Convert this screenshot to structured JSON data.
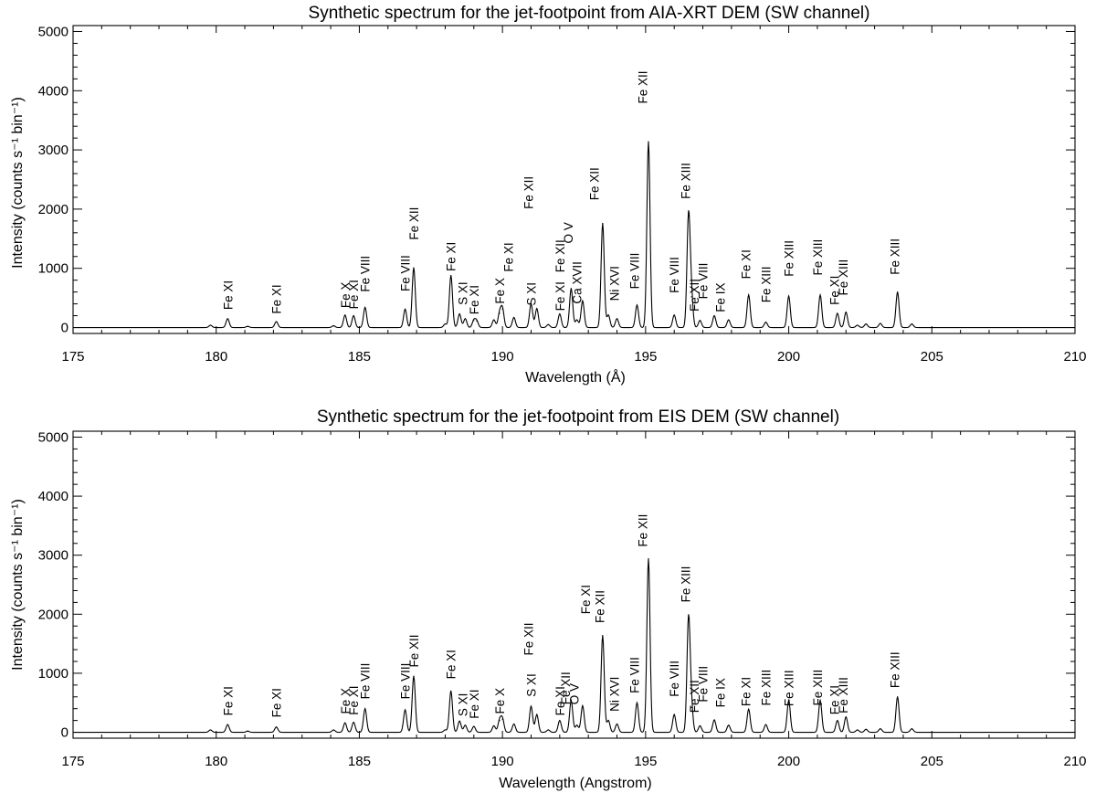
{
  "chart_data": [
    {
      "type": "line",
      "title": "Synthetic spectrum for the jet-footpoint from AIA-XRT DEM (SW channel)",
      "xlabel": "Wavelength (Å)",
      "ylabel": "Intensity (counts s⁻¹ bin⁻¹)",
      "xlim": [
        175,
        210
      ],
      "ylim": [
        -100,
        5100
      ],
      "xticks": [
        "175",
        "180",
        "185",
        "190",
        "195",
        "200",
        "205",
        "210"
      ],
      "yticks": [
        "0",
        "1000",
        "2000",
        "3000",
        "4000",
        "5000"
      ],
      "grid": false,
      "lines": [
        {
          "x": 179.8,
          "y": 40
        },
        {
          "x": 180.4,
          "y": 150
        },
        {
          "x": 181.1,
          "y": 20
        },
        {
          "x": 182.1,
          "y": 100
        },
        {
          "x": 184.1,
          "y": 30
        },
        {
          "x": 184.5,
          "y": 210
        },
        {
          "x": 184.8,
          "y": 200
        },
        {
          "x": 185.2,
          "y": 340
        },
        {
          "x": 186.6,
          "y": 310
        },
        {
          "x": 186.9,
          "y": 1010
        },
        {
          "x": 188.0,
          "y": 60
        },
        {
          "x": 188.2,
          "y": 880
        },
        {
          "x": 188.5,
          "y": 230
        },
        {
          "x": 188.7,
          "y": 150
        },
        {
          "x": 189.0,
          "y": 120
        },
        {
          "x": 189.1,
          "y": 110
        },
        {
          "x": 189.7,
          "y": 130
        },
        {
          "x": 189.9,
          "y": 240
        },
        {
          "x": 190.0,
          "y": 310
        },
        {
          "x": 190.4,
          "y": 170
        },
        {
          "x": 191.0,
          "y": 400
        },
        {
          "x": 191.2,
          "y": 320
        },
        {
          "x": 191.6,
          "y": 50
        },
        {
          "x": 192.0,
          "y": 230
        },
        {
          "x": 192.4,
          "y": 660
        },
        {
          "x": 192.6,
          "y": 130
        },
        {
          "x": 192.8,
          "y": 450
        },
        {
          "x": 193.5,
          "y": 1760
        },
        {
          "x": 193.7,
          "y": 210
        },
        {
          "x": 194.0,
          "y": 150
        },
        {
          "x": 194.7,
          "y": 380
        },
        {
          "x": 195.1,
          "y": 3140
        },
        {
          "x": 196.0,
          "y": 210
        },
        {
          "x": 196.5,
          "y": 1880
        },
        {
          "x": 196.6,
          "y": 520
        },
        {
          "x": 196.9,
          "y": 120
        },
        {
          "x": 197.4,
          "y": 200
        },
        {
          "x": 197.9,
          "y": 130
        },
        {
          "x": 198.6,
          "y": 550
        },
        {
          "x": 199.2,
          "y": 90
        },
        {
          "x": 200.0,
          "y": 530
        },
        {
          "x": 201.1,
          "y": 550
        },
        {
          "x": 201.7,
          "y": 240
        },
        {
          "x": 202.0,
          "y": 260
        },
        {
          "x": 202.4,
          "y": 40
        },
        {
          "x": 202.7,
          "y": 60
        },
        {
          "x": 203.2,
          "y": 70
        },
        {
          "x": 203.8,
          "y": 600
        },
        {
          "x": 204.3,
          "y": 60
        }
      ],
      "annotations": [
        {
          "text": "Fe XI",
          "x": 180.4,
          "y": 300,
          "rotation": 90
        },
        {
          "text": "Fe XI",
          "x": 182.1,
          "y": 230,
          "rotation": 90
        },
        {
          "text": "Fe X",
          "x": 184.5,
          "y": 330,
          "rotation": 90
        },
        {
          "text": "Fe XI",
          "x": 184.8,
          "y": 310,
          "rotation": 90
        },
        {
          "text": "Fe VIII",
          "x": 185.2,
          "y": 600,
          "rotation": 90
        },
        {
          "text": "Fe VIII",
          "x": 186.6,
          "y": 610,
          "rotation": 90
        },
        {
          "text": "Fe XII",
          "x": 186.9,
          "y": 1480,
          "rotation": 90
        },
        {
          "text": "Fe XI",
          "x": 188.2,
          "y": 950,
          "rotation": 90
        },
        {
          "text": "S XI",
          "x": 188.6,
          "y": 380,
          "rotation": 90
        },
        {
          "text": "Fe XI",
          "x": 189.0,
          "y": 220,
          "rotation": 90
        },
        {
          "text": "Fe X",
          "x": 189.9,
          "y": 400,
          "rotation": 90
        },
        {
          "text": "Fe XI",
          "x": 190.2,
          "y": 940,
          "rotation": 90
        },
        {
          "text": "Fe XII",
          "x": 190.9,
          "y": 2000,
          "rotation": 90
        },
        {
          "text": "S XI",
          "x": 191.0,
          "y": 370,
          "rotation": 90
        },
        {
          "text": "Fe XI",
          "x": 192.0,
          "y": 280,
          "rotation": 90
        },
        {
          "text": "Fe XII",
          "x": 192.0,
          "y": 930,
          "rotation": 90
        },
        {
          "text": "O V",
          "x": 192.3,
          "y": 1420,
          "rotation": 90
        },
        {
          "text": "Ca XVII",
          "x": 192.6,
          "y": 400,
          "rotation": 90
        },
        {
          "text": "Fe XII",
          "x": 193.2,
          "y": 2150,
          "rotation": 90
        },
        {
          "text": "Ni XVI",
          "x": 193.9,
          "y": 450,
          "rotation": 90
        },
        {
          "text": "Fe VIII",
          "x": 194.6,
          "y": 650,
          "rotation": 90
        },
        {
          "text": "Fe XII",
          "x": 194.9,
          "y": 3780,
          "rotation": 90
        },
        {
          "text": "Fe VIII",
          "x": 196.0,
          "y": 580,
          "rotation": 90
        },
        {
          "text": "Fe XIII",
          "x": 196.4,
          "y": 2170,
          "rotation": 90
        },
        {
          "text": "Fe XII",
          "x": 196.7,
          "y": 270,
          "rotation": 90
        },
        {
          "text": "Fe VIII",
          "x": 197.0,
          "y": 480,
          "rotation": 90
        },
        {
          "text": "Fe IX",
          "x": 197.6,
          "y": 260,
          "rotation": 90
        },
        {
          "text": "Fe XI",
          "x": 198.5,
          "y": 820,
          "rotation": 90
        },
        {
          "text": "Fe XIII",
          "x": 199.2,
          "y": 420,
          "rotation": 90
        },
        {
          "text": "Fe XIII",
          "x": 200.0,
          "y": 860,
          "rotation": 90
        },
        {
          "text": "Fe XIII",
          "x": 201.0,
          "y": 880,
          "rotation": 90
        },
        {
          "text": "Fe XI",
          "x": 201.6,
          "y": 380,
          "rotation": 90
        },
        {
          "text": "Fe XIII",
          "x": 201.9,
          "y": 540,
          "rotation": 90
        },
        {
          "text": "Fe XIII",
          "x": 203.7,
          "y": 890,
          "rotation": 90
        }
      ]
    },
    {
      "type": "line",
      "title": "Synthetic spectrum for the jet-footpoint from EIS DEM (SW channel)",
      "xlabel": "Wavelength (Angstrom)",
      "ylabel": "Intensity (counts s⁻¹ bin⁻¹)",
      "xlim": [
        175,
        210
      ],
      "ylim": [
        -100,
        5100
      ],
      "xticks": [
        "175",
        "180",
        "185",
        "190",
        "195",
        "200",
        "205",
        "210"
      ],
      "yticks": [
        "0",
        "1000",
        "2000",
        "3000",
        "4000",
        "5000"
      ],
      "grid": false,
      "lines": [
        {
          "x": 179.8,
          "y": 40
        },
        {
          "x": 180.4,
          "y": 130
        },
        {
          "x": 181.1,
          "y": 20
        },
        {
          "x": 182.1,
          "y": 90
        },
        {
          "x": 184.1,
          "y": 40
        },
        {
          "x": 184.5,
          "y": 160
        },
        {
          "x": 184.8,
          "y": 170
        },
        {
          "x": 185.2,
          "y": 400
        },
        {
          "x": 186.6,
          "y": 380
        },
        {
          "x": 186.9,
          "y": 950
        },
        {
          "x": 188.0,
          "y": 40
        },
        {
          "x": 188.2,
          "y": 700
        },
        {
          "x": 188.5,
          "y": 190
        },
        {
          "x": 188.7,
          "y": 120
        },
        {
          "x": 189.0,
          "y": 100
        },
        {
          "x": 189.7,
          "y": 110
        },
        {
          "x": 189.9,
          "y": 200
        },
        {
          "x": 190.0,
          "y": 220
        },
        {
          "x": 190.4,
          "y": 140
        },
        {
          "x": 191.0,
          "y": 440
        },
        {
          "x": 191.2,
          "y": 300
        },
        {
          "x": 191.6,
          "y": 40
        },
        {
          "x": 192.0,
          "y": 200
        },
        {
          "x": 192.4,
          "y": 540
        },
        {
          "x": 192.6,
          "y": 120
        },
        {
          "x": 192.8,
          "y": 450
        },
        {
          "x": 193.5,
          "y": 1640
        },
        {
          "x": 193.7,
          "y": 200
        },
        {
          "x": 194.0,
          "y": 140
        },
        {
          "x": 194.7,
          "y": 500
        },
        {
          "x": 195.1,
          "y": 2940
        },
        {
          "x": 196.0,
          "y": 300
        },
        {
          "x": 196.5,
          "y": 1920
        },
        {
          "x": 196.6,
          "y": 420
        },
        {
          "x": 196.9,
          "y": 110
        },
        {
          "x": 197.4,
          "y": 210
        },
        {
          "x": 197.9,
          "y": 120
        },
        {
          "x": 198.6,
          "y": 390
        },
        {
          "x": 199.2,
          "y": 130
        },
        {
          "x": 200.0,
          "y": 540
        },
        {
          "x": 201.1,
          "y": 540
        },
        {
          "x": 201.7,
          "y": 200
        },
        {
          "x": 202.0,
          "y": 260
        },
        {
          "x": 202.4,
          "y": 40
        },
        {
          "x": 202.7,
          "y": 50
        },
        {
          "x": 203.2,
          "y": 60
        },
        {
          "x": 203.8,
          "y": 600
        },
        {
          "x": 204.3,
          "y": 60
        }
      ],
      "annotations": [
        {
          "text": "Fe XI",
          "x": 180.4,
          "y": 280,
          "rotation": 90
        },
        {
          "text": "Fe XI",
          "x": 182.1,
          "y": 250,
          "rotation": 90
        },
        {
          "text": "Fe X",
          "x": 184.5,
          "y": 310,
          "rotation": 90
        },
        {
          "text": "Fe XI",
          "x": 184.8,
          "y": 290,
          "rotation": 90
        },
        {
          "text": "Fe VIII",
          "x": 185.2,
          "y": 560,
          "rotation": 90
        },
        {
          "text": "Fe VIII",
          "x": 186.6,
          "y": 560,
          "rotation": 90
        },
        {
          "text": "Fe XII",
          "x": 186.9,
          "y": 1100,
          "rotation": 90
        },
        {
          "text": "Fe XI",
          "x": 188.2,
          "y": 900,
          "rotation": 90
        },
        {
          "text": "S XI",
          "x": 188.6,
          "y": 270,
          "rotation": 90
        },
        {
          "text": "Fe XI",
          "x": 189.0,
          "y": 230,
          "rotation": 90
        },
        {
          "text": "Fe X",
          "x": 189.9,
          "y": 310,
          "rotation": 90
        },
        {
          "text": "Fe XII",
          "x": 190.9,
          "y": 1300,
          "rotation": 90
        },
        {
          "text": "S XI",
          "x": 191.0,
          "y": 600,
          "rotation": 90
        },
        {
          "text": "Fe XI",
          "x": 192.0,
          "y": 280,
          "rotation": 90
        },
        {
          "text": "Fe XII",
          "x": 192.2,
          "y": 470,
          "rotation": 90
        },
        {
          "text": "O V",
          "x": 192.5,
          "y": 470,
          "rotation": 90
        },
        {
          "text": "Fe XI",
          "x": 192.9,
          "y": 2000,
          "rotation": 90
        },
        {
          "text": "Fe XII",
          "x": 193.4,
          "y": 1850,
          "rotation": 90
        },
        {
          "text": "Ni XVI",
          "x": 193.9,
          "y": 350,
          "rotation": 90
        },
        {
          "text": "Fe VIII",
          "x": 194.6,
          "y": 660,
          "rotation": 90
        },
        {
          "text": "Fe XII",
          "x": 194.9,
          "y": 3140,
          "rotation": 90
        },
        {
          "text": "Fe VIII",
          "x": 196.0,
          "y": 600,
          "rotation": 90
        },
        {
          "text": "Fe XIII",
          "x": 196.4,
          "y": 2200,
          "rotation": 90
        },
        {
          "text": "Fe XII",
          "x": 196.7,
          "y": 330,
          "rotation": 90
        },
        {
          "text": "Fe VIII",
          "x": 197.0,
          "y": 510,
          "rotation": 90
        },
        {
          "text": "Fe IX",
          "x": 197.6,
          "y": 420,
          "rotation": 90
        },
        {
          "text": "Fe XI",
          "x": 198.5,
          "y": 440,
          "rotation": 90
        },
        {
          "text": "Fe XIII",
          "x": 199.2,
          "y": 450,
          "rotation": 90
        },
        {
          "text": "Fe XIII",
          "x": 200.0,
          "y": 440,
          "rotation": 90
        },
        {
          "text": "Fe XIII",
          "x": 201.0,
          "y": 450,
          "rotation": 90
        },
        {
          "text": "Fe XI",
          "x": 201.6,
          "y": 300,
          "rotation": 90
        },
        {
          "text": "Fe XIII",
          "x": 201.9,
          "y": 320,
          "rotation": 90
        },
        {
          "text": "Fe XIII",
          "x": 203.7,
          "y": 750,
          "rotation": 90
        }
      ]
    }
  ]
}
